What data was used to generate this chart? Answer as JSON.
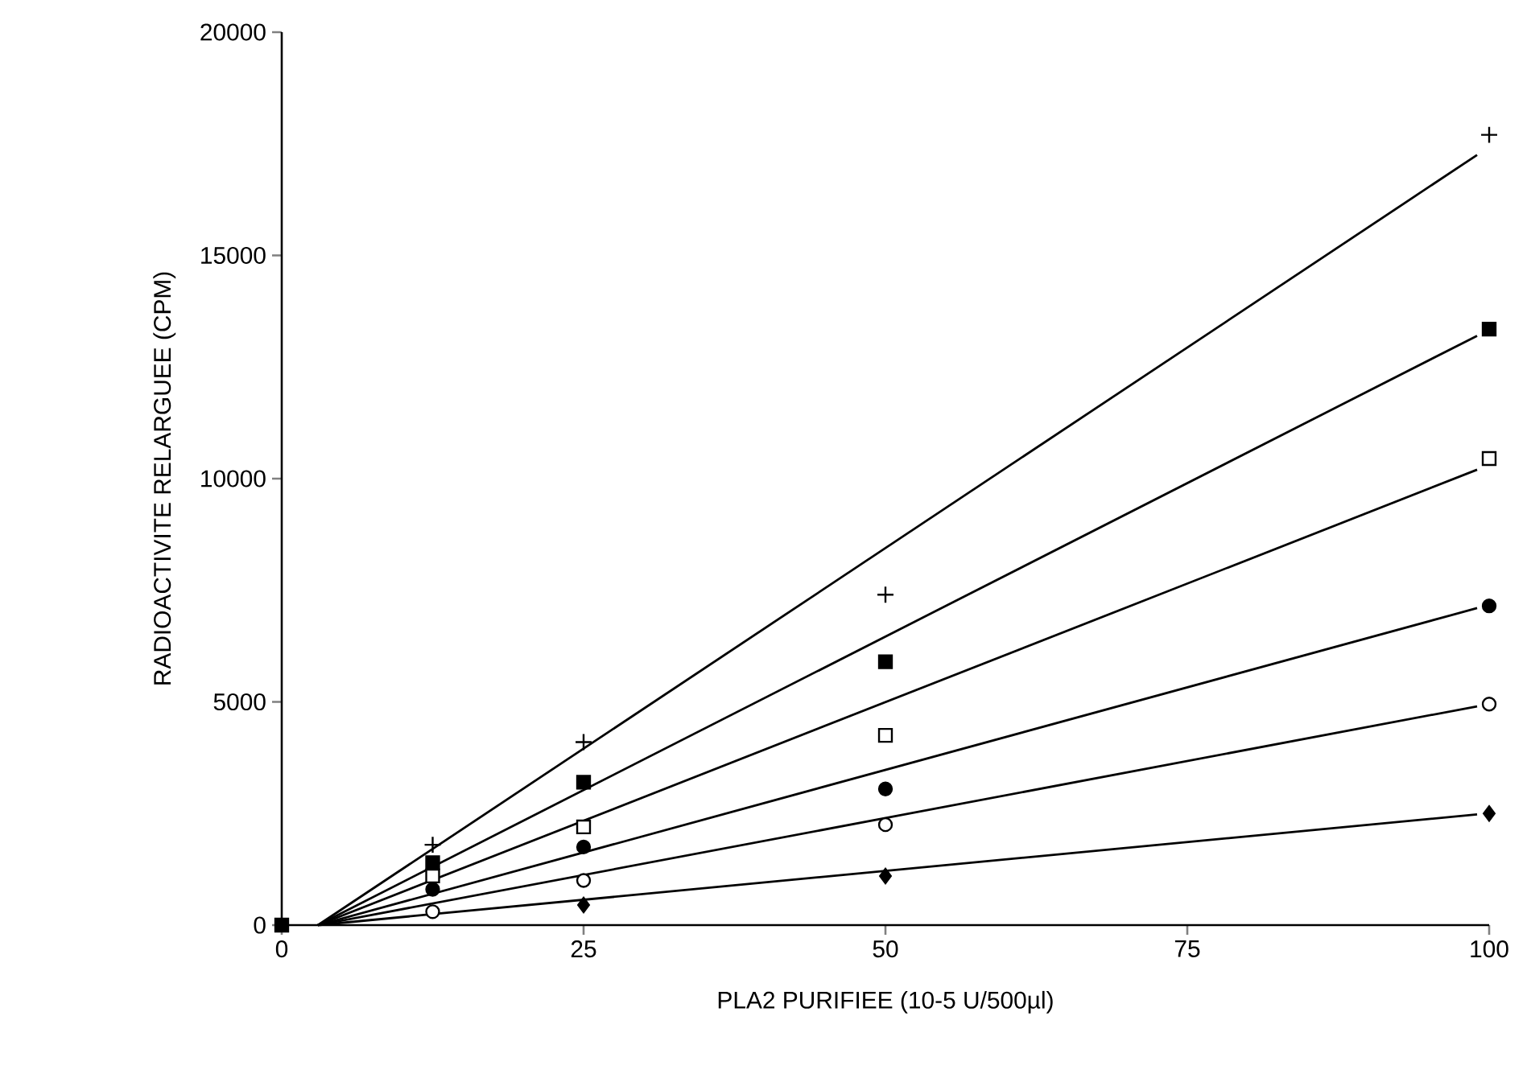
{
  "chart_data": {
    "type": "scatter",
    "xlabel": "PLA2 PURIFIEE (10-5 U/500µl)",
    "ylabel": "RADIOACTIVITE RELARGUEE (CPM)",
    "xlim": [
      0,
      100
    ],
    "ylim": [
      0,
      20000
    ],
    "xticks": [
      0,
      25,
      50,
      75,
      100
    ],
    "yticks": [
      0,
      5000,
      10000,
      15000,
      20000
    ],
    "grid": false,
    "series": [
      {
        "marker": "cross",
        "color": "#000000",
        "x": [
          12.5,
          25,
          50,
          100
        ],
        "values": [
          1800,
          4100,
          7400,
          17700
        ]
      },
      {
        "marker": "square",
        "color": "#000000",
        "x": [
          0,
          12.5,
          25,
          50,
          100
        ],
        "values": [
          0,
          1400,
          3200,
          5900,
          13350
        ]
      },
      {
        "marker": "square",
        "color": "#ffffff",
        "x": [
          12.5,
          25,
          50,
          100
        ],
        "values": [
          1100,
          2200,
          4250,
          10450
        ]
      },
      {
        "marker": "circle",
        "color": "#000000",
        "x": [
          12.5,
          25,
          50,
          100
        ],
        "values": [
          800,
          1750,
          3050,
          7150
        ]
      },
      {
        "marker": "circle",
        "color": "#ffffff",
        "x": [
          12.5,
          25,
          50,
          100
        ],
        "values": [
          300,
          1000,
          2250,
          4950
        ]
      },
      {
        "marker": "diamond",
        "color": "#000000",
        "x": [
          25,
          50,
          100
        ],
        "values": [
          450,
          1100,
          2500
        ]
      },
      {
        "type": "line",
        "marker": "none",
        "color": "#000000",
        "x": [
          3,
          99
        ],
        "values": [
          0,
          17250
        ]
      },
      {
        "type": "line",
        "marker": "none",
        "color": "#000000",
        "x": [
          3,
          99
        ],
        "values": [
          0,
          13200
        ]
      },
      {
        "type": "line",
        "marker": "none",
        "color": "#000000",
        "x": [
          3,
          99
        ],
        "values": [
          0,
          10200
        ]
      },
      {
        "type": "line",
        "marker": "none",
        "color": "#000000",
        "x": [
          3,
          99
        ],
        "values": [
          0,
          7100
        ]
      },
      {
        "type": "line",
        "marker": "none",
        "color": "#000000",
        "x": [
          3,
          99
        ],
        "values": [
          0,
          4900
        ]
      },
      {
        "type": "line",
        "marker": "none",
        "color": "#000000",
        "x": [
          3,
          99
        ],
        "values": [
          0,
          2480
        ]
      }
    ]
  }
}
